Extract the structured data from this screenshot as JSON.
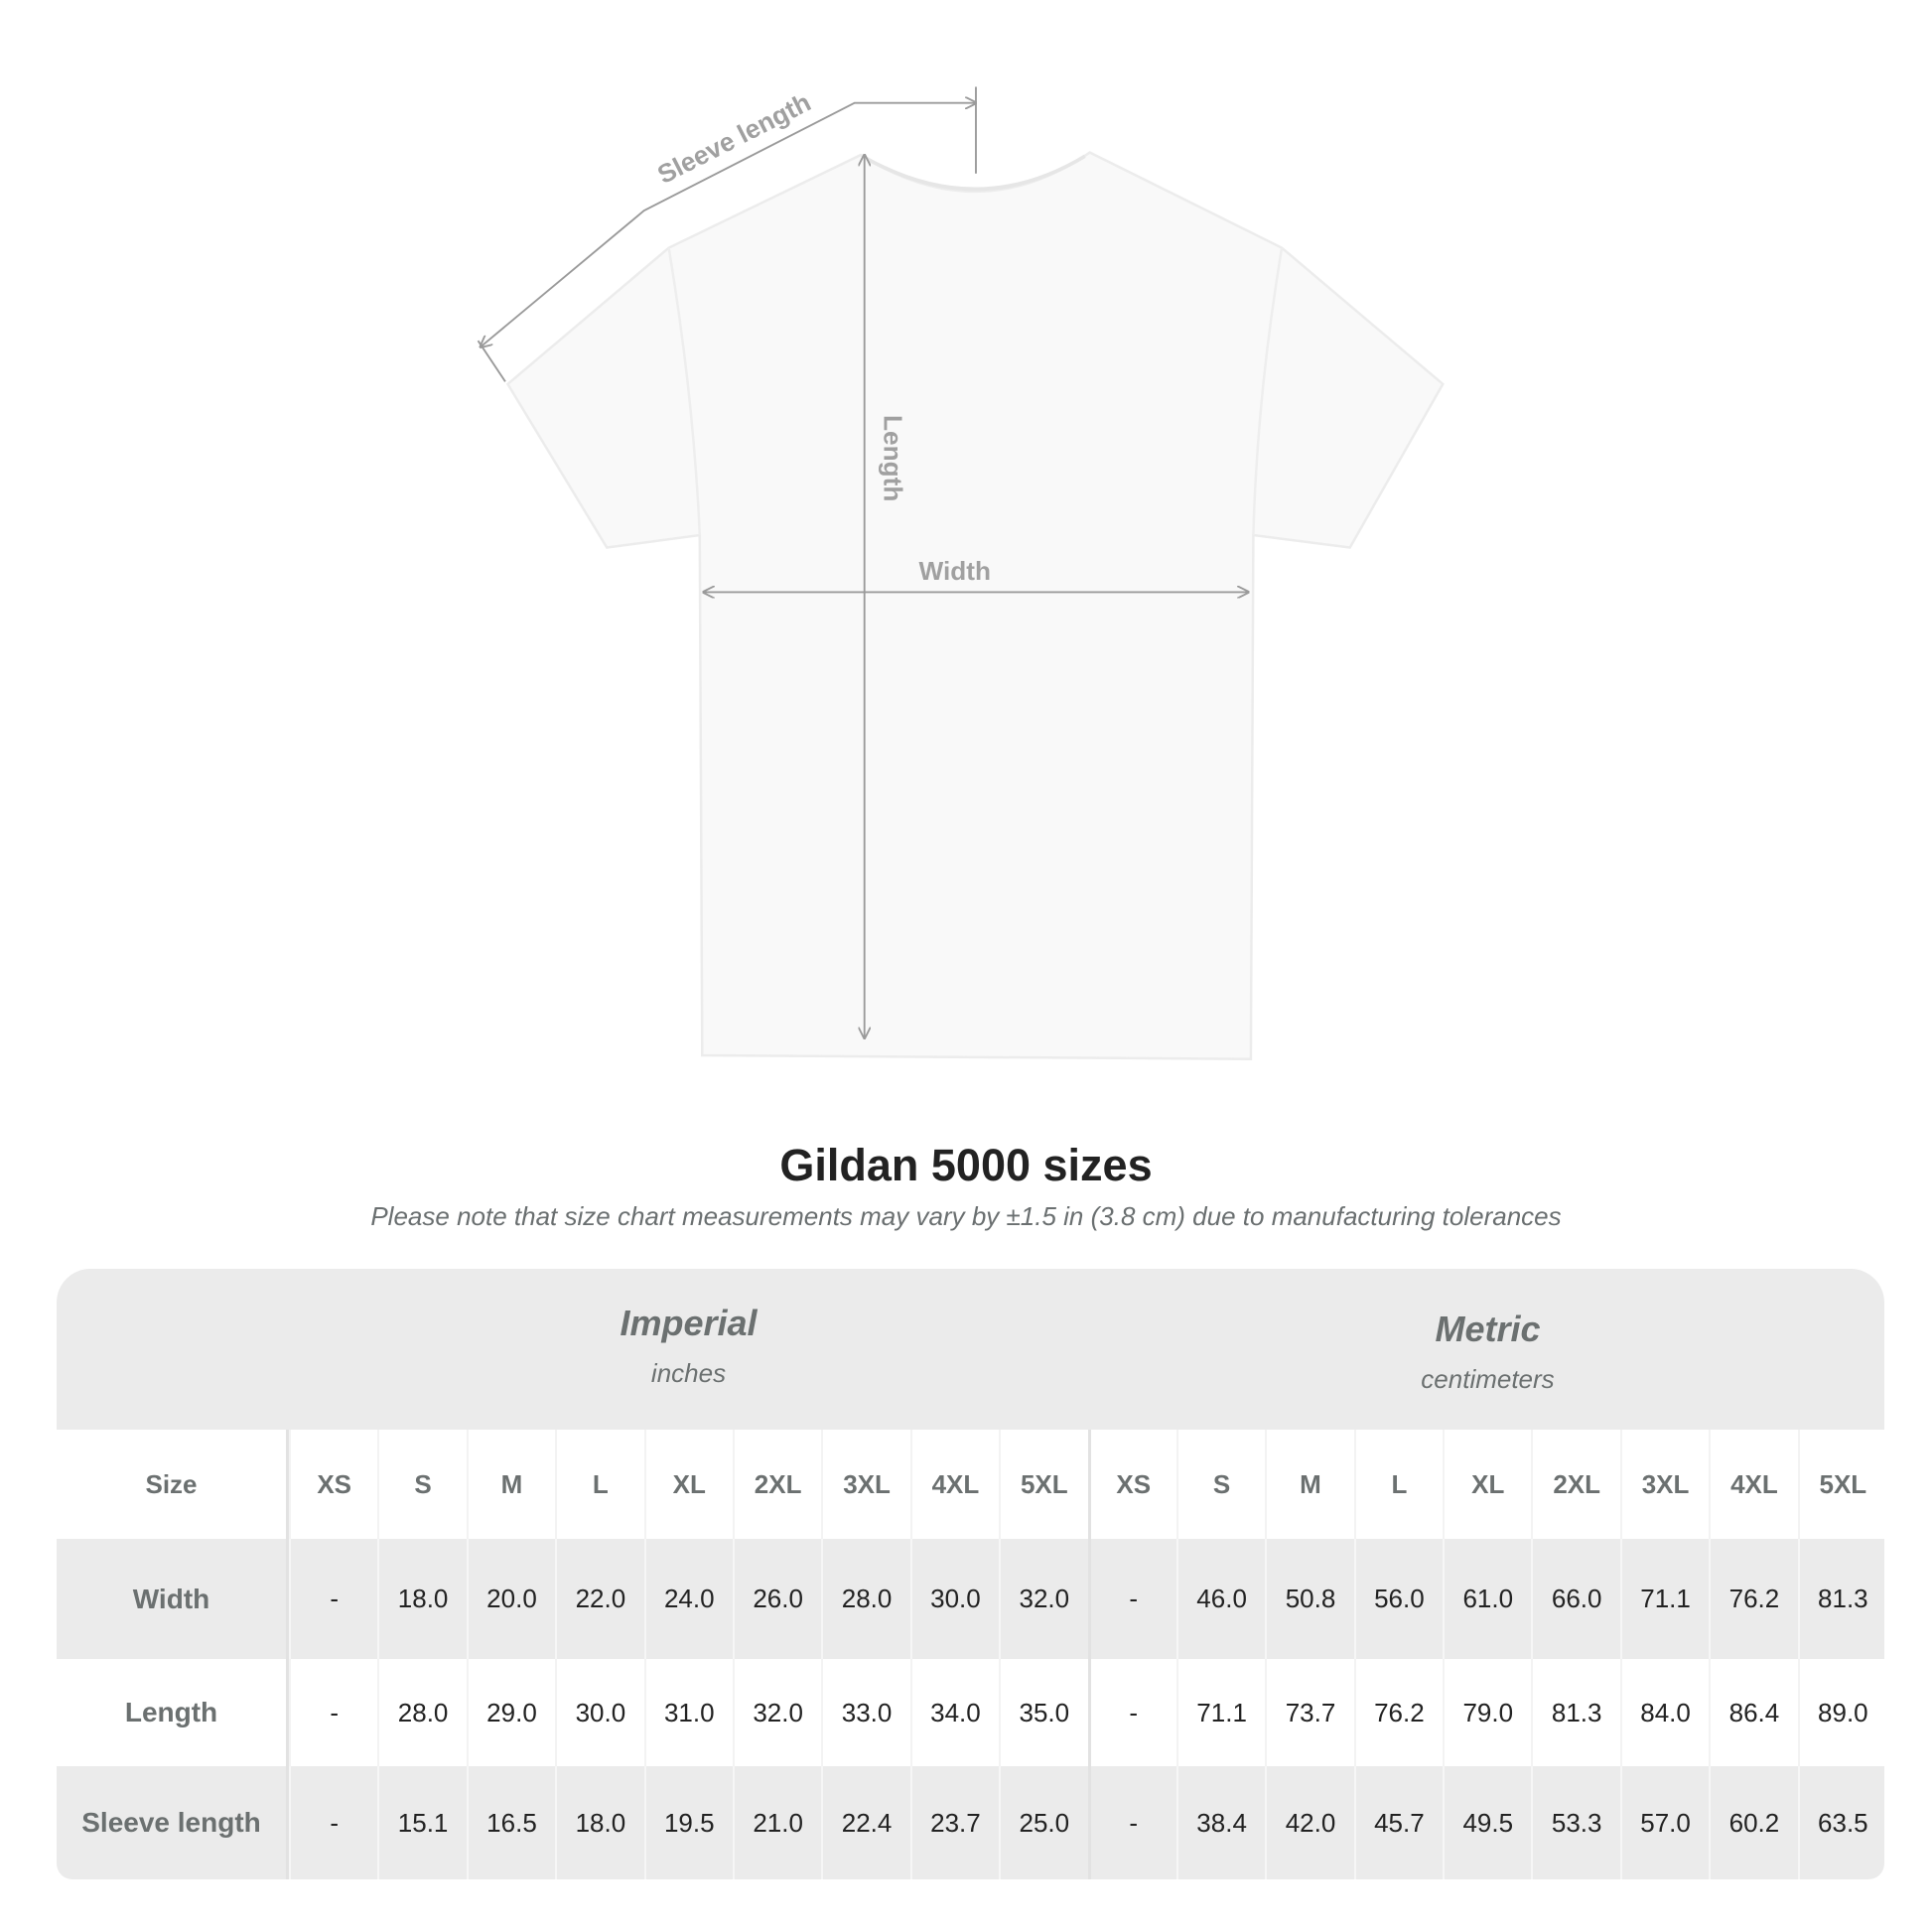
{
  "diagram": {
    "labels": {
      "sleeve": "Sleeve length",
      "length": "Length",
      "width": "Width"
    },
    "colors": {
      "shirt": "#fafafa",
      "measure_line": "#9a9a9a",
      "label": "#a0a0a0"
    }
  },
  "title": "Gildan 5000 sizes",
  "subtitle": "Please note that size chart measurements may vary by ±1.5 in (3.8 cm) due to manufacturing tolerances",
  "table": {
    "systems": [
      {
        "name": "Imperial",
        "unit": "inches"
      },
      {
        "name": "Metric",
        "unit": "centimeters"
      }
    ],
    "size_label": "Size",
    "sizes": [
      "XS",
      "S",
      "M",
      "L",
      "XL",
      "2XL",
      "3XL",
      "4XL",
      "5XL"
    ],
    "rows": [
      {
        "label": "Width",
        "imperial": [
          "-",
          "18.0",
          "20.0",
          "22.0",
          "24.0",
          "26.0",
          "28.0",
          "30.0",
          "32.0"
        ],
        "metric": [
          "-",
          "46.0",
          "50.8",
          "56.0",
          "61.0",
          "66.0",
          "71.1",
          "76.2",
          "81.3"
        ]
      },
      {
        "label": "Length",
        "imperial": [
          "-",
          "28.0",
          "29.0",
          "30.0",
          "31.0",
          "32.0",
          "33.0",
          "34.0",
          "35.0"
        ],
        "metric": [
          "-",
          "71.1",
          "73.7",
          "76.2",
          "79.0",
          "81.3",
          "84.0",
          "86.4",
          "89.0"
        ]
      },
      {
        "label": "Sleeve length",
        "imperial": [
          "-",
          "15.1",
          "16.5",
          "18.0",
          "19.5",
          "21.0",
          "22.4",
          "23.7",
          "25.0"
        ],
        "metric": [
          "-",
          "38.4",
          "42.0",
          "45.7",
          "49.5",
          "53.3",
          "57.0",
          "60.2",
          "63.5"
        ]
      }
    ],
    "colors": {
      "band": "#ebebeb",
      "label_text": "#6b7070"
    }
  }
}
